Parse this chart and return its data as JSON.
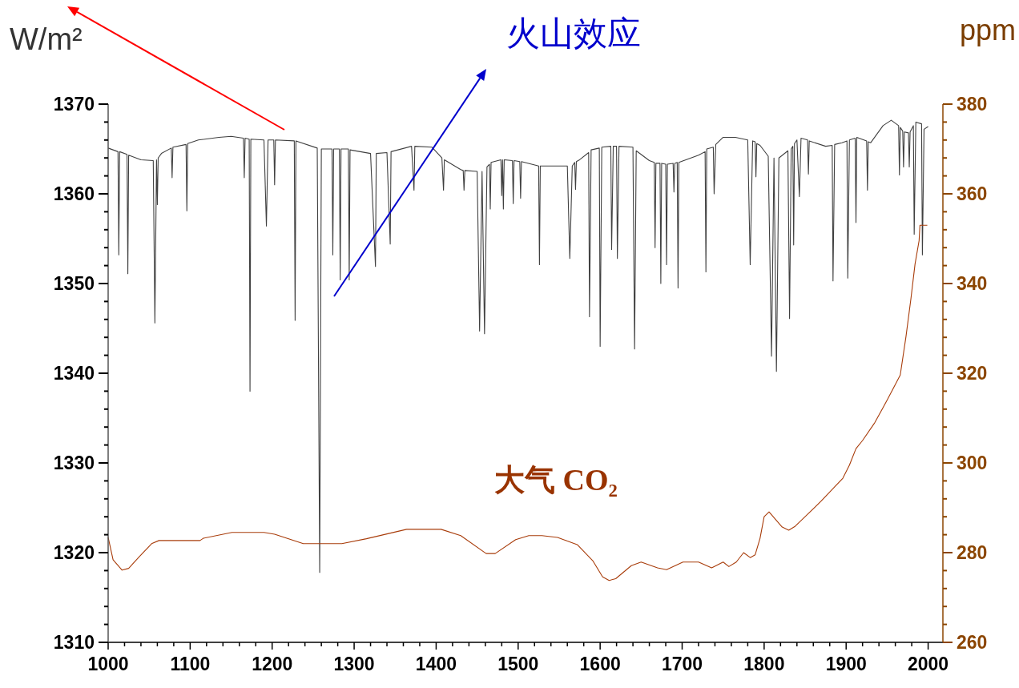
{
  "chart_data": {
    "type": "line",
    "ylabel": "W/m²",
    "y2label": "ppm",
    "annotations": [
      "火山效应"
    ],
    "xlim": [
      1000,
      2018
    ],
    "ylim": [
      1310,
      1370
    ],
    "y2lim": [
      260,
      380
    ],
    "xticks": [
      1000,
      {
        "value": 1020,
        "label": null
      },
      {
        "value": 1040,
        "label": null
      },
      {
        "value": 1060,
        "label": null
      },
      {
        "value": 1080,
        "label": null
      },
      1100,
      {
        "value": 1120,
        "label": null
      },
      {
        "value": 1140,
        "label": null
      },
      {
        "value": 1160,
        "label": null
      },
      {
        "value": 1180,
        "label": null
      },
      1200,
      {
        "value": 1220,
        "label": null
      },
      {
        "value": 1240,
        "label": null
      },
      {
        "value": 1260,
        "label": null
      },
      {
        "value": 1280,
        "label": null
      },
      1300,
      {
        "value": 1320,
        "label": null
      },
      {
        "value": 1340,
        "label": null
      },
      {
        "value": 1360,
        "label": null
      },
      {
        "value": 1380,
        "label": null
      },
      1400,
      {
        "value": 1420,
        "label": null
      },
      {
        "value": 1440,
        "label": null
      },
      {
        "value": 1460,
        "label": null
      },
      {
        "value": 1480,
        "label": null
      },
      1500,
      {
        "value": 1520,
        "label": null
      },
      {
        "value": 1540,
        "label": null
      },
      {
        "value": 1560,
        "label": null
      },
      {
        "value": 1580,
        "label": null
      },
      1600,
      {
        "value": 1620,
        "label": null
      },
      {
        "value": 1640,
        "label": null
      },
      {
        "value": 1660,
        "label": null
      },
      {
        "value": 1680,
        "label": null
      },
      1700,
      {
        "value": 1720,
        "label": null
      },
      {
        "value": 1740,
        "label": null
      },
      {
        "value": 1760,
        "label": null
      },
      {
        "value": 1780,
        "label": null
      },
      1800,
      {
        "value": 1820,
        "label": null
      },
      {
        "value": 1840,
        "label": null
      },
      {
        "value": 1860,
        "label": null
      },
      {
        "value": 1880,
        "label": null
      },
      1900,
      {
        "value": 1920,
        "label": null
      },
      {
        "value": 1940,
        "label": null
      },
      {
        "value": 1960,
        "label": null
      },
      {
        "value": 1980,
        "label": null
      },
      2000
    ],
    "yticks": [
      1310,
      {
        "value": 1312,
        "label": null
      },
      {
        "value": 1314,
        "label": null
      },
      {
        "value": 1316,
        "label": null
      },
      {
        "value": 1318,
        "label": null
      },
      1320,
      {
        "value": 1322,
        "label": null
      },
      {
        "value": 1324,
        "label": null
      },
      {
        "value": 1326,
        "label": null
      },
      {
        "value": 1328,
        "label": null
      },
      1330,
      {
        "value": 1332,
        "label": null
      },
      {
        "value": 1334,
        "label": null
      },
      {
        "value": 1336,
        "label": null
      },
      {
        "value": 1338,
        "label": null
      },
      1340,
      {
        "value": 1342,
        "label": null
      },
      {
        "value": 1344,
        "label": null
      },
      {
        "value": 1346,
        "label": null
      },
      {
        "value": 1348,
        "label": null
      },
      1350,
      {
        "value": 1352,
        "label": null
      },
      {
        "value": 1354,
        "label": null
      },
      {
        "value": 1356,
        "label": null
      },
      {
        "value": 1358,
        "label": null
      },
      1360,
      {
        "value": 1362,
        "label": null
      },
      {
        "value": 1364,
        "label": null
      },
      {
        "value": 1366,
        "label": null
      },
      {
        "value": 1368,
        "label": null
      },
      1370
    ],
    "y2ticks": [
      260,
      {
        "value": 264,
        "label": null
      },
      {
        "value": 268,
        "label": null
      },
      {
        "value": 272,
        "label": null
      },
      {
        "value": 276,
        "label": null
      },
      280,
      {
        "value": 284,
        "label": null
      },
      {
        "value": 288,
        "label": null
      },
      {
        "value": 292,
        "label": null
      },
      {
        "value": 296,
        "label": null
      },
      300,
      {
        "value": 304,
        "label": null
      },
      {
        "value": 308,
        "label": null
      },
      {
        "value": 312,
        "label": null
      },
      {
        "value": 316,
        "label": null
      },
      320,
      {
        "value": 324,
        "label": null
      },
      {
        "value": 328,
        "label": null
      },
      {
        "value": 332,
        "label": null
      },
      {
        "value": 336,
        "label": null
      },
      340,
      {
        "value": 344,
        "label": null
      },
      {
        "value": 348,
        "label": null
      },
      {
        "value": 352,
        "label": null
      },
      {
        "value": 356,
        "label": null
      },
      360,
      {
        "value": 364,
        "label": null
      },
      {
        "value": 368,
        "label": null
      },
      {
        "value": 372,
        "label": null
      },
      {
        "value": 376,
        "label": null
      },
      380
    ],
    "series": [
      {
        "color": "#404040",
        "x": [
          1000,
          1012,
          1013,
          1014,
          1023,
          1024,
          1025,
          1040,
          1055,
          1057,
          1059,
          1060,
          1061,
          1065,
          1077,
          1078,
          1079,
          1095,
          1096,
          1097,
          1110,
          1135,
          1150,
          1165,
          1166,
          1167,
          1172,
          1173,
          1174,
          1190,
          1193,
          1195,
          1202,
          1203,
          1204,
          1227,
          1228,
          1229,
          1255,
          1258,
          1260,
          1273,
          1274,
          1275,
          1282,
          1283,
          1284,
          1293,
          1294,
          1295,
          1320,
          1326,
          1327,
          1340,
          1344,
          1345,
          1370,
          1373,
          1374,
          1395,
          1407,
          1409,
          1410,
          1430,
          1433,
          1434,
          1435,
          1450,
          1453,
          1456,
          1459,
          1462,
          1465,
          1466,
          1467,
          1479,
          1480,
          1481,
          1482,
          1483,
          1493,
          1494,
          1495,
          1502,
          1503,
          1504,
          1525,
          1526,
          1527,
          1560,
          1563,
          1566,
          1569,
          1570,
          1571,
          1575,
          1586,
          1587,
          1589,
          1599,
          1600,
          1602,
          1613,
          1614,
          1616,
          1620,
          1621,
          1623,
          1640,
          1642,
          1644,
          1660,
          1666,
          1667,
          1668,
          1673,
          1674,
          1675,
          1680,
          1681,
          1682,
          1689,
          1690,
          1691,
          1694,
          1695,
          1696,
          1720,
          1728,
          1729,
          1730,
          1738,
          1739,
          1741,
          1750,
          1765,
          1780,
          1783,
          1786,
          1789,
          1790,
          1791,
          1795,
          1805,
          1809,
          1812,
          1815,
          1818,
          1829,
          1831,
          1833,
          1835,
          1836,
          1837,
          1840,
          1843,
          1845,
          1853,
          1854,
          1855,
          1875,
          1883,
          1884,
          1886,
          1895,
          1901,
          1902,
          1904,
          1911,
          1912,
          1913,
          1925,
          1926,
          1927,
          1930,
          1945,
          1955,
          1964,
          1965,
          1966,
          1969,
          1970,
          1971,
          1976,
          1977,
          1978,
          1982,
          1983,
          1985,
          1992,
          1993,
          1995,
          2000
        ],
        "values": [
          1365.1,
          1364.7,
          1353.2,
          1364.7,
          1364.4,
          1351.1,
          1364.3,
          1363.8,
          1363.7,
          1345.6,
          1363.8,
          1358.8,
          1364.0,
          1364.5,
          1365.1,
          1361.8,
          1365.2,
          1365.5,
          1358.1,
          1365.6,
          1366.0,
          1366.3,
          1366.4,
          1366.2,
          1361.8,
          1366.2,
          1366.1,
          1338.0,
          1366.1,
          1366.0,
          1356.4,
          1366.0,
          1366.0,
          1361.0,
          1366.0,
          1365.9,
          1345.9,
          1365.9,
          1365.1,
          1317.8,
          1365.0,
          1365.0,
          1353.2,
          1365.0,
          1365.0,
          1350.4,
          1365.0,
          1365.0,
          1350.4,
          1364.9,
          1364.5,
          1351.9,
          1364.5,
          1364.6,
          1354.4,
          1364.7,
          1365.3,
          1360.4,
          1365.3,
          1365.2,
          1364.0,
          1360.4,
          1363.8,
          1362.7,
          1362.6,
          1360.4,
          1362.6,
          1362.5,
          1344.7,
          1362.5,
          1344.4,
          1363.0,
          1363.3,
          1358.3,
          1363.5,
          1363.8,
          1359.8,
          1363.8,
          1358.3,
          1363.8,
          1363.7,
          1358.9,
          1363.7,
          1363.6,
          1359.5,
          1363.6,
          1363.1,
          1352.1,
          1363.1,
          1363.1,
          1352.8,
          1363.1,
          1363.5,
          1360.5,
          1363.6,
          1363.8,
          1364.6,
          1346.3,
          1364.9,
          1365.1,
          1343.0,
          1365.2,
          1365.3,
          1353.8,
          1365.3,
          1365.3,
          1352.8,
          1365.3,
          1365.2,
          1342.7,
          1364.8,
          1363.7,
          1363.5,
          1354.0,
          1363.4,
          1363.4,
          1350.0,
          1363.4,
          1363.3,
          1352.1,
          1363.3,
          1363.4,
          1360.2,
          1363.4,
          1363.5,
          1349.5,
          1363.5,
          1364.3,
          1364.7,
          1351.3,
          1365.0,
          1365.2,
          1360.0,
          1365.5,
          1366.3,
          1366.3,
          1366.0,
          1352.1,
          1365.9,
          1365.8,
          1361.9,
          1365.6,
          1365.4,
          1364.2,
          1341.9,
          1364.0,
          1340.2,
          1364.0,
          1364.8,
          1346.1,
          1365.0,
          1365.3,
          1354.3,
          1365.6,
          1366.0,
          1359.7,
          1366.2,
          1366.0,
          1362.2,
          1365.9,
          1365.3,
          1365.4,
          1350.3,
          1365.5,
          1365.7,
          1365.9,
          1350.6,
          1366.0,
          1366.2,
          1356.8,
          1366.3,
          1365.9,
          1360.4,
          1365.8,
          1365.7,
          1367.6,
          1368.2,
          1367.6,
          1362.1,
          1367.4,
          1367.0,
          1363.0,
          1366.9,
          1366.8,
          1363.0,
          1366.9,
          1367.6,
          1355.5,
          1368.0,
          1367.8,
          1353.2,
          1367.2,
          1367.5
        ]
      },
      {
        "name": "大气 CO₂",
        "color": "#a83c0a",
        "axis": "y2",
        "x": [
          1000,
          1006,
          1017,
          1025,
          1037,
          1053,
          1062,
          1112,
          1116,
          1151,
          1190,
          1203,
          1238,
          1285,
          1315,
          1364,
          1406,
          1430,
          1461,
          1472,
          1497,
          1513,
          1529,
          1548,
          1572,
          1591,
          1603,
          1611,
          1619,
          1638,
          1650,
          1670,
          1681,
          1701,
          1720,
          1736,
          1750,
          1757,
          1766,
          1775,
          1783,
          1789,
          1795,
          1800,
          1806,
          1822,
          1830,
          1838,
          1869,
          1896,
          1904,
          1912,
          1920,
          1935,
          1950,
          1960,
          1966,
          1973,
          1979,
          1984,
          1989,
          1990,
          1999
        ],
        "values": [
          283.4,
          278.4,
          276.1,
          276.5,
          278.9,
          282.0,
          282.7,
          282.7,
          283.2,
          284.5,
          284.5,
          284.1,
          282.0,
          282.0,
          283.1,
          285.2,
          285.2,
          283.8,
          279.8,
          279.8,
          282.9,
          283.8,
          283.8,
          283.4,
          281.8,
          278.2,
          274.6,
          273.8,
          274.2,
          277.1,
          277.9,
          276.6,
          276.2,
          277.9,
          277.9,
          276.6,
          277.9,
          276.9,
          277.9,
          280.0,
          278.9,
          279.5,
          283.2,
          288.0,
          289.1,
          285.7,
          285.0,
          285.9,
          291.4,
          296.6,
          299.5,
          303.2,
          305.0,
          309.0,
          314.0,
          317.5,
          319.6,
          328.2,
          336.6,
          344.3,
          349.6,
          353.0,
          353.0
        ]
      }
    ]
  }
}
